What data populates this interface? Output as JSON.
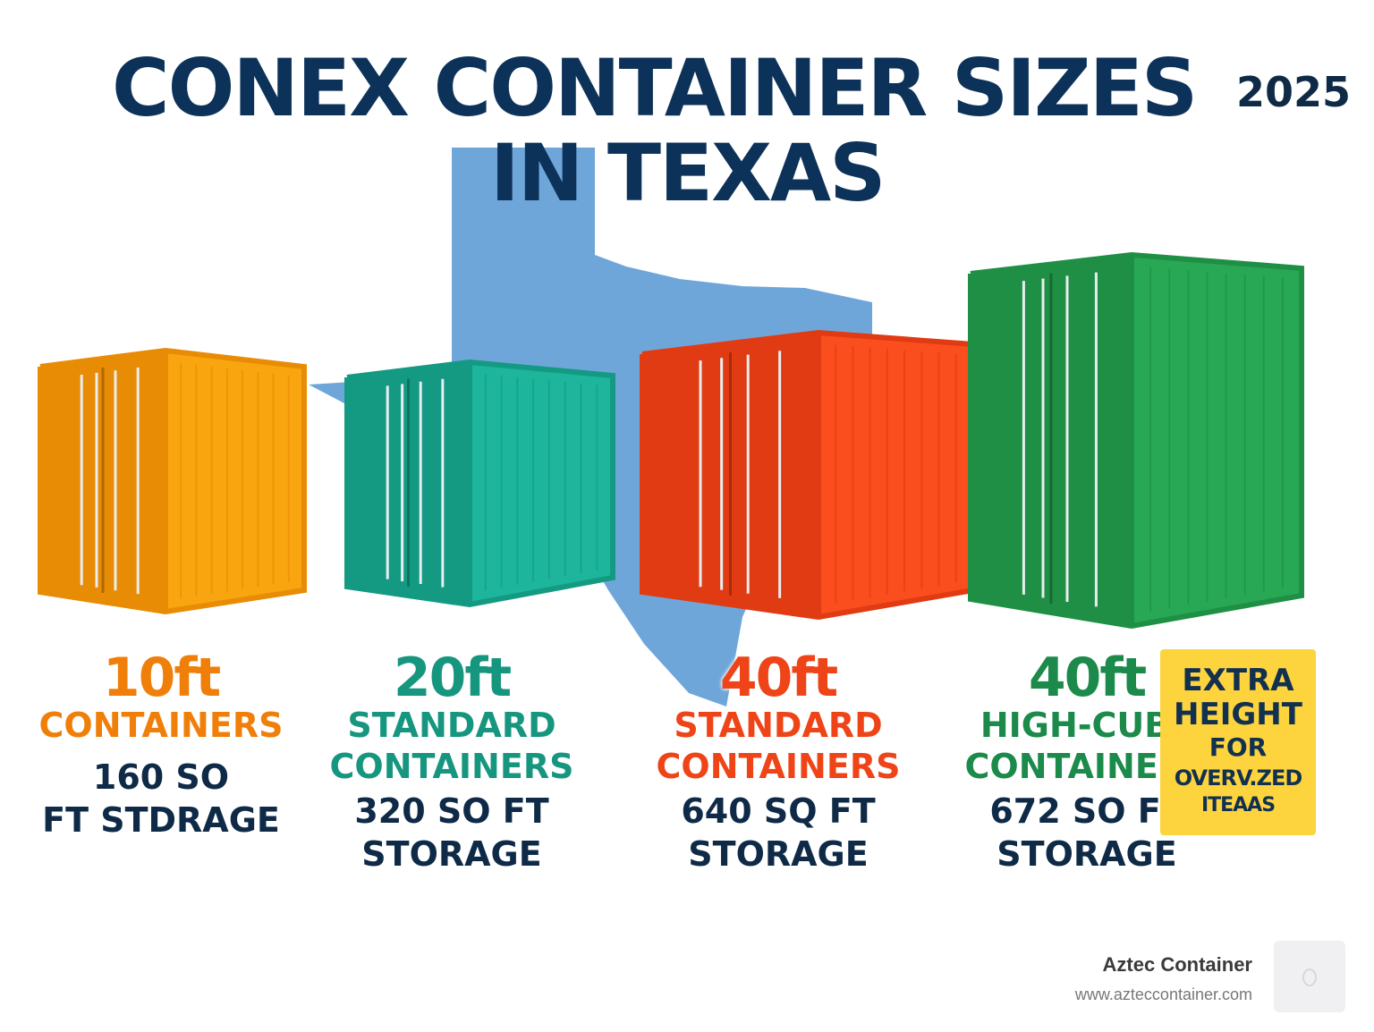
{
  "title": {
    "line1": "CONEX CONTAINER SIZES",
    "line2": "IN TEXAS",
    "year": "2025"
  },
  "colors": {
    "navy": "#0c3259",
    "texas": "#6fa6da",
    "badge": "#fdd43e"
  },
  "containers": [
    {
      "size": "10ft",
      "type": [
        "CONTAINERS"
      ],
      "storage": [
        "160 SO",
        "FT STDRAGE"
      ],
      "color": "#f9a50f",
      "dark": "#e88c05",
      "text_color": "#f07f0a"
    },
    {
      "size": "20ft",
      "type": [
        "STANDARD",
        "CONTAINERS"
      ],
      "storage": [
        "320 SO FT",
        "STORAGE"
      ],
      "color": "#1db59b",
      "dark": "#149a83",
      "text_color": "#17967f"
    },
    {
      "size": "40ft",
      "type": [
        "STANDARD",
        "CONTAINERS"
      ],
      "storage": [
        "640 SQ FT",
        "STORAGE"
      ],
      "color": "#fb4e1e",
      "dark": "#e03b12",
      "text_color": "#ee4418"
    },
    {
      "size": "40ft",
      "type": [
        "HIGH-CUBE",
        "CONTAINERS"
      ],
      "storage": [
        "672 SO FT",
        "STORAGE"
      ],
      "color": "#28a854",
      "dark": "#1f8f45",
      "text_color": "#1b8a4a"
    }
  ],
  "badge": {
    "lines": [
      "EXTRA",
      "HEIGHT",
      "FOR",
      "OVERV.ZED",
      "ITEAAS"
    ]
  },
  "brand": {
    "name": "Aztec Container",
    "url": "www.azteccontainer.com",
    "logo_icon": "aztec-logo-icon"
  }
}
